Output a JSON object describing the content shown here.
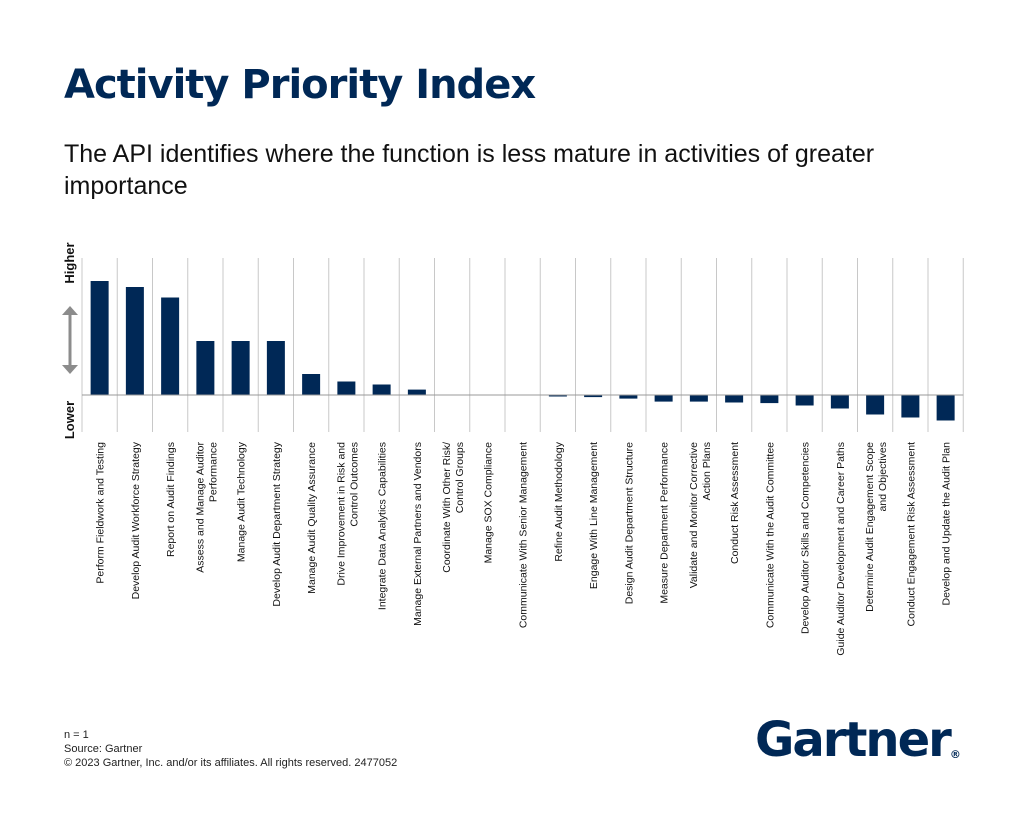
{
  "title": "Activity Priority Index",
  "subtitle": "The API identifies where the function is less mature in activities of greater importance",
  "footer": {
    "n": "n = 1",
    "source": "Source: Gartner",
    "copyright": "© 2023 Gartner, Inc. and/or its affiliates. All rights reserved. 2477052"
  },
  "logo": {
    "text": "Gartner",
    "mark": "®"
  },
  "colors": {
    "bar": "#002856",
    "grid": "#c8c8c8",
    "arrow": "#8c8c8c",
    "title": "#002856"
  },
  "chart_data": {
    "type": "bar",
    "xlabel": "",
    "ylabel_high": "Higher",
    "ylabel_low": "Lower",
    "ylim": [
      -1.6,
      4.6
    ],
    "grid": "vertical",
    "categories": [
      [
        "Perform Fieldwork and Testing"
      ],
      [
        "Develop Audit Workforce Strategy"
      ],
      [
        "Report on Audit Findings"
      ],
      [
        "Assess and Manage Auditor",
        "Performance"
      ],
      [
        "Manage Audit Technology"
      ],
      [
        "Develop Audit Department Strategy"
      ],
      [
        "Manage Audit Quality Assurance"
      ],
      [
        "Drive Improvement in Risk and",
        "Control Outcomes"
      ],
      [
        "Integrate Data Analytics Capabilities"
      ],
      [
        "Manage External Partners and Vendors"
      ],
      [
        "Coordinate With Other Risk/",
        "Control Groups"
      ],
      [
        "Manage SOX Compliance"
      ],
      [
        "Communicate With Senior Management"
      ],
      [
        "Refine Audit Methodology"
      ],
      [
        "Engage With Line Management"
      ],
      [
        "Design Audit Department Structure"
      ],
      [
        "Measure Department Performance"
      ],
      [
        "Validate and Monitor Corrective",
        "Action Plans"
      ],
      [
        "Conduct Risk Assessment"
      ],
      [
        "Communicate With the Audit Committee"
      ],
      [
        "Develop Auditor Skills and Competencies"
      ],
      [
        "Guide Auditor Development and Career Paths"
      ],
      [
        "Determine Audit Engagement Scope",
        "and Objectives"
      ],
      [
        "Conduct Engagement Risk Assessment"
      ],
      [
        "Develop and Update the Audit Plan"
      ]
    ],
    "values": [
      3.8,
      3.6,
      3.25,
      1.8,
      1.8,
      1.8,
      0.7,
      0.45,
      0.35,
      0.18,
      0,
      0,
      0,
      -0.05,
      -0.07,
      -0.12,
      -0.22,
      -0.22,
      -0.25,
      -0.27,
      -0.35,
      -0.45,
      -0.65,
      -0.75,
      -0.85
    ]
  }
}
